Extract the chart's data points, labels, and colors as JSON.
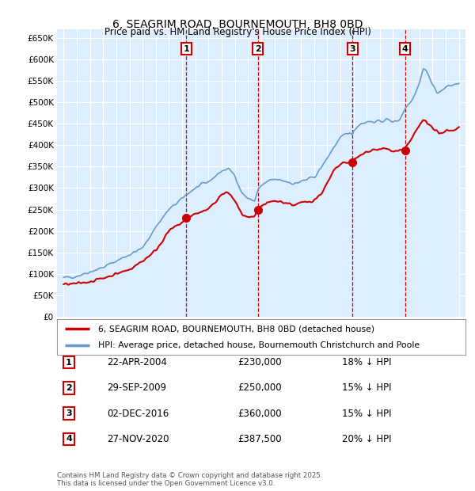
{
  "title": "6, SEAGRIM ROAD, BOURNEMOUTH, BH8 0BD",
  "subtitle": "Price paid vs. HM Land Registry's House Price Index (HPI)",
  "ytick_values": [
    0,
    50000,
    100000,
    150000,
    200000,
    250000,
    300000,
    350000,
    400000,
    450000,
    500000,
    550000,
    600000,
    650000
  ],
  "xmin": 1994.5,
  "xmax": 2025.5,
  "ymin": 0,
  "ymax": 670000,
  "sale_color": "#cc0000",
  "hpi_color": "#6699cc",
  "hpi_fill_color": "#ddeeff",
  "background_color": "#ddeeff",
  "grid_color": "#cccccc",
  "sale_label": "6, SEAGRIM ROAD, BOURNEMOUTH, BH8 0BD (detached house)",
  "hpi_label": "HPI: Average price, detached house, Bournemouth Christchurch and Poole",
  "transactions": [
    {
      "num": 1,
      "date": "22-APR-2004",
      "year": 2004.31,
      "price": 230000,
      "pct": "18%",
      "dir": "↓"
    },
    {
      "num": 2,
      "date": "29-SEP-2009",
      "year": 2009.75,
      "price": 250000,
      "pct": "15%",
      "dir": "↓"
    },
    {
      "num": 3,
      "date": "02-DEC-2016",
      "year": 2016.92,
      "price": 360000,
      "pct": "15%",
      "dir": "↓"
    },
    {
      "num": 4,
      "date": "27-NOV-2020",
      "year": 2020.91,
      "price": 387500,
      "pct": "20%",
      "dir": "↓"
    }
  ],
  "footer": "Contains HM Land Registry data © Crown copyright and database right 2025.\nThis data is licensed under the Open Government Licence v3.0.",
  "table_rows": [
    [
      "1",
      "22-APR-2004",
      "£230,000",
      "18% ↓ HPI"
    ],
    [
      "2",
      "29-SEP-2009",
      "£250,000",
      "15% ↓ HPI"
    ],
    [
      "3",
      "02-DEC-2016",
      "£360,000",
      "15% ↓ HPI"
    ],
    [
      "4",
      "27-NOV-2020",
      "£387,500",
      "20% ↓ HPI"
    ]
  ]
}
